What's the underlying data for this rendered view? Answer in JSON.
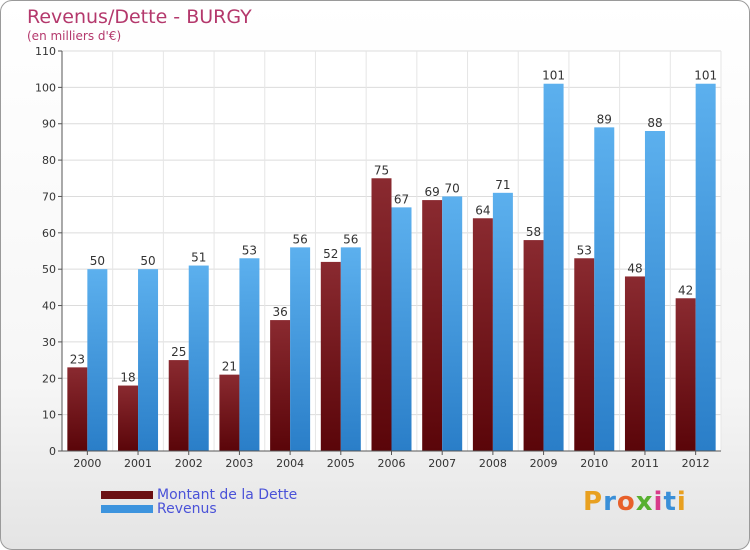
{
  "chart_data": {
    "type": "bar",
    "title": "Revenus/Dette - BURGY",
    "subtitle": "(en milliers d'€)",
    "categories": [
      "2000",
      "2001",
      "2002",
      "2003",
      "2004",
      "2005",
      "2006",
      "2007",
      "2008",
      "2009",
      "2010",
      "2011",
      "2012"
    ],
    "series": [
      {
        "name": "Montant de la Dette",
        "color": "#6b0f12",
        "values": [
          23,
          18,
          25,
          21,
          36,
          52,
          75,
          69,
          64,
          58,
          53,
          48,
          42
        ]
      },
      {
        "name": "Revenus",
        "color": "#3d94de",
        "values": [
          50,
          50,
          51,
          53,
          56,
          56,
          67,
          70,
          71,
          101,
          89,
          88,
          101
        ]
      }
    ],
    "ylim": [
      0,
      110
    ],
    "yticks": [
      0,
      10,
      20,
      30,
      40,
      50,
      60,
      70,
      80,
      90,
      100,
      110
    ],
    "grid": true,
    "legend_position": "bottom-left"
  },
  "logo": {
    "text": "Proxiti"
  }
}
